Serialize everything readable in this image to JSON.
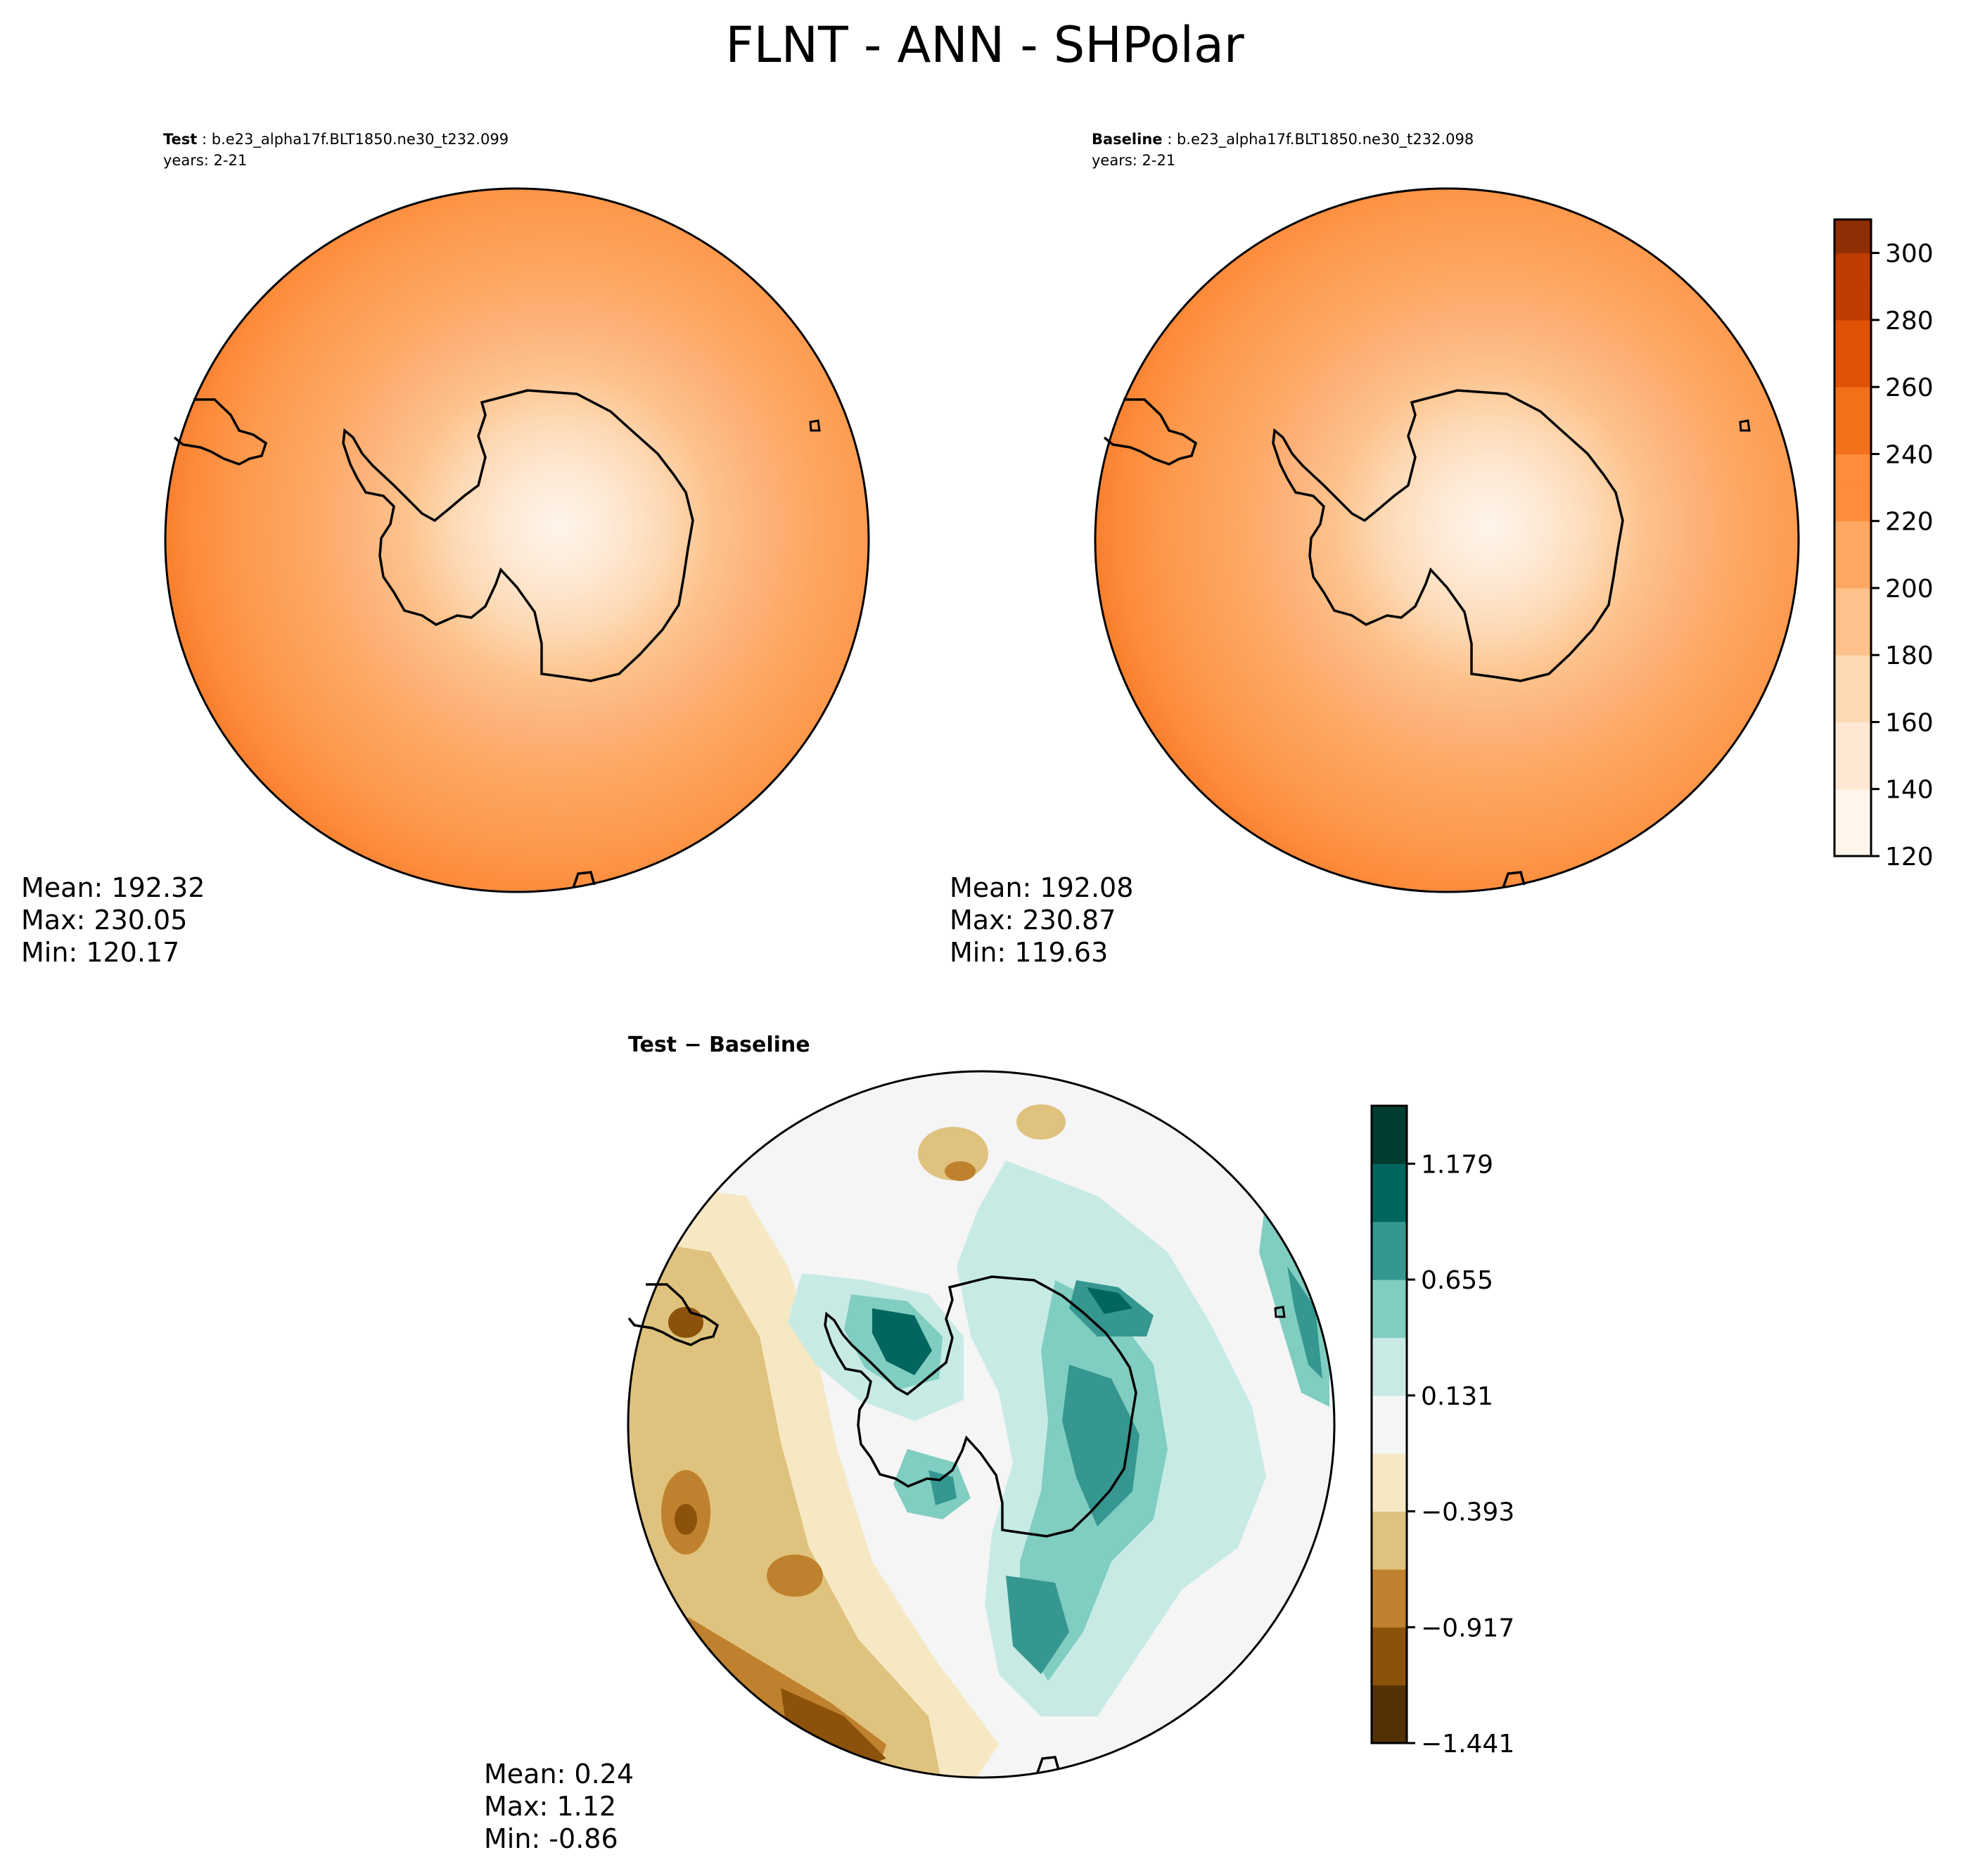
{
  "figure": {
    "title": "FLNT - ANN - SHPolar"
  },
  "panels": {
    "test": {
      "label_bold": "Test",
      "label_rest": " : b.e23_alpha17f.BLT1850.ne30_t232.099",
      "years": "years: 2-21",
      "stats": {
        "mean": "Mean: 192.32",
        "max": "Max: 230.05",
        "min": "Min: 120.17"
      }
    },
    "baseline": {
      "label_bold": "Baseline",
      "label_rest": " : b.e23_alpha17f.BLT1850.ne30_t232.098",
      "years": "years: 2-21",
      "stats": {
        "mean": "Mean: 192.08",
        "max": "Max: 230.87",
        "min": "Min: 119.63"
      }
    },
    "diff": {
      "label": "Test − Baseline",
      "stats": {
        "mean": "Mean:  0.24",
        "max": "Max:  1.12",
        "min": "Min: -0.86"
      }
    }
  },
  "chart_data": [
    {
      "type": "heatmap",
      "title": "Test : b.e23_alpha17f.BLT1850.ne30_t232.099",
      "projection": "south polar stereographic",
      "colormap": "Oranges",
      "colorbar": {
        "ticks": [
          120,
          140,
          160,
          180,
          200,
          220,
          240,
          260,
          280,
          300
        ],
        "range": [
          120,
          310
        ]
      },
      "stats": {
        "mean": 192.32,
        "max": 230.05,
        "min": 120.17
      }
    },
    {
      "type": "heatmap",
      "title": "Baseline : b.e23_alpha17f.BLT1850.ne30_t232.098",
      "projection": "south polar stereographic",
      "colormap": "Oranges",
      "colorbar": {
        "ticks": [
          120,
          140,
          160,
          180,
          200,
          220,
          240,
          260,
          280,
          300
        ],
        "range": [
          120,
          310
        ]
      },
      "stats": {
        "mean": 192.08,
        "max": 230.87,
        "min": 119.63
      }
    },
    {
      "type": "heatmap",
      "title": "Test − Baseline",
      "projection": "south polar stereographic",
      "colormap": "BrBG",
      "colorbar": {
        "tick_labels": [
          "1.179",
          "0.655",
          "0.131",
          "−0.393",
          "−0.917",
          "−1.441"
        ],
        "ticks": [
          1.179,
          0.655,
          0.131,
          -0.393,
          -0.917,
          -1.441
        ],
        "range": [
          -1.441,
          1.441
        ]
      },
      "stats": {
        "mean": 0.24,
        "max": 1.12,
        "min": -0.86
      }
    }
  ],
  "colors": {
    "oranges": [
      "#fff5eb",
      "#fee8d3",
      "#fdd9b4",
      "#fdc28c",
      "#fda762",
      "#fd8c3b",
      "#f3701b",
      "#e05206",
      "#bf3b02",
      "#8f2d04"
    ],
    "brbg": [
      "#543005",
      "#8c510a",
      "#bf812d",
      "#dfc27d",
      "#f6e8c3",
      "#f5f5f5",
      "#c7eae5",
      "#80cdc1",
      "#35978f",
      "#01665e",
      "#003c30"
    ]
  }
}
